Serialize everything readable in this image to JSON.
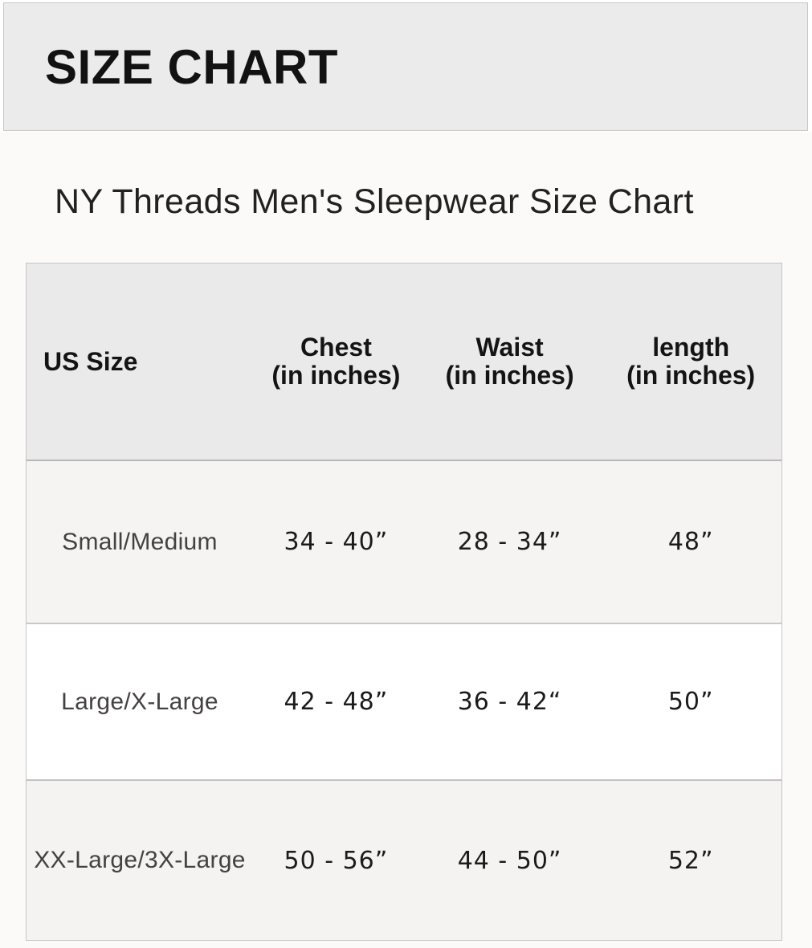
{
  "banner": {
    "title": "SIZE CHART"
  },
  "subtitle": "NY Threads Men's Sleepwear Size Chart",
  "table": {
    "headers": [
      {
        "line1": "US Size",
        "line2": ""
      },
      {
        "line1": "Chest",
        "line2": "(in inches)"
      },
      {
        "line1": "Waist",
        "line2": "(in inches)"
      },
      {
        "line1": "length",
        "line2": "(in inches)"
      }
    ],
    "rows": [
      {
        "size": "Small/Medium",
        "chest": "34 - 40”",
        "waist": "28 - 34”",
        "length": "48”"
      },
      {
        "size": "Large/X-Large",
        "chest": "42 - 48”",
        "waist": "36 - 42“",
        "length": "50”"
      },
      {
        "size": "XX-Large/3X-Large",
        "chest": "50 - 56”",
        "waist": "44 - 50”",
        "length": "52”"
      }
    ]
  },
  "chart_data": {
    "type": "table",
    "title": "NY Threads Men's Sleepwear Size Chart",
    "columns": [
      "US Size",
      "Chest (in inches)",
      "Waist (in inches)",
      "length (in inches)"
    ],
    "rows": [
      [
        "Small/Medium",
        "34 - 40\"",
        "28 - 34\"",
        "48\""
      ],
      [
        "Large/X-Large",
        "42 - 48\"",
        "36 - 42\"",
        "50\""
      ],
      [
        "XX-Large/3X-Large",
        "50 - 56\"",
        "44 - 50\"",
        "52\""
      ]
    ],
    "units": "inches",
    "chest_ranges": [
      [
        34,
        40
      ],
      [
        42,
        48
      ],
      [
        50,
        56
      ]
    ],
    "waist_ranges": [
      [
        28,
        34
      ],
      [
        36,
        42
      ],
      [
        44,
        50
      ]
    ],
    "length_values": [
      48,
      50,
      52
    ]
  },
  "colors": {
    "banner_bg": "#ebebeb",
    "banner_border": "#c9c7c7",
    "page_bg": "#fbfaf9",
    "header_row_bg": "#ebeaea",
    "alt_row_bg": "#f5f4f3",
    "white_row_bg": "#ffffff",
    "table_border": "#c7c5c5",
    "heading_text": "#121212",
    "label_text": "#454142"
  }
}
